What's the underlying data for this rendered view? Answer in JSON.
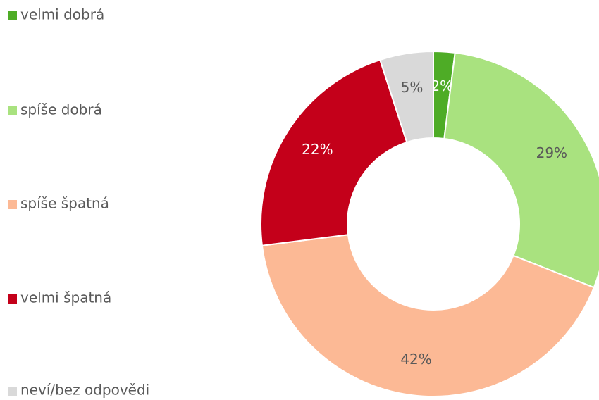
{
  "chart_data": {
    "type": "donut",
    "categories": [
      "velmi dobrá",
      "spíše dobrá",
      "spíše špatná",
      "velmi špatná",
      "neví/bez odpovědi"
    ],
    "values": [
      2,
      29,
      42,
      22,
      5
    ],
    "value_labels": [
      "2%",
      "29%",
      "42%",
      "22%",
      "5%"
    ],
    "colors": [
      "#4eac26",
      "#a9e27f",
      "#fcb995",
      "#c4001a",
      "#d9d9d9"
    ],
    "legend": "left"
  }
}
